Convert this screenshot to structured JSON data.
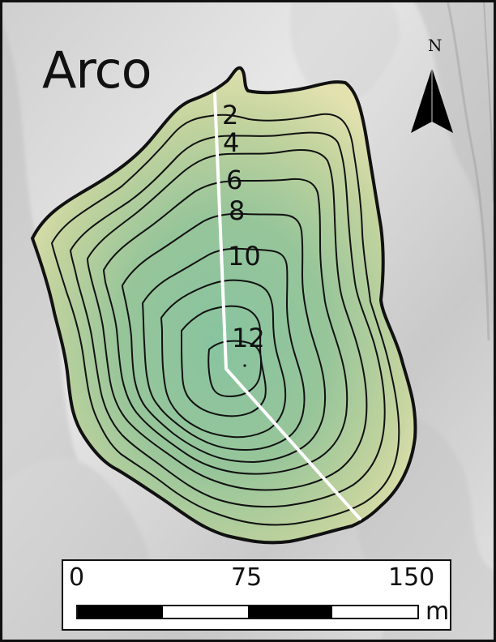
{
  "title": "Arco",
  "north_arrow": {
    "label": "N",
    "icon": "north-arrow-icon"
  },
  "contour_labels": [
    "2",
    "4",
    "6",
    "8",
    "10",
    "12"
  ],
  "scale_bar": {
    "ticks": [
      "0",
      "75",
      "150"
    ],
    "unit": "m",
    "segments": 4
  },
  "colors": {
    "lake_outline": "#111111",
    "profile_line": "#ffffff",
    "shallow_fill": "#d8d99d",
    "deep_fill": "#8bbf97",
    "scalebar_fill": "#000000"
  }
}
